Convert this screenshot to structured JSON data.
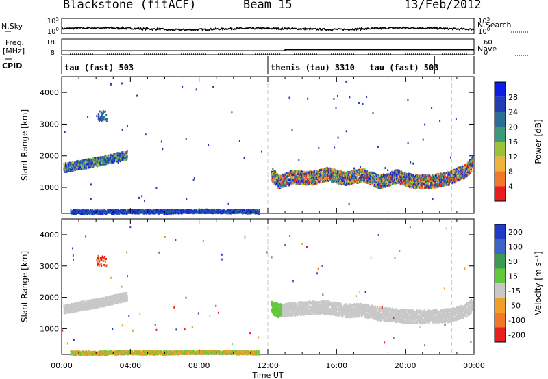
{
  "header": {
    "station": "Blackstone (fitACF)",
    "beam": "Beam 15",
    "date": "13/Feb/2012"
  },
  "strip_labels": {
    "nsky": "N.Sky",
    "nsearch": "N.Search",
    "freq": "Freq.",
    "freq_unit": "[MHz]",
    "nave": "Nave",
    "cpid": "CPID"
  },
  "strip_ticks": {
    "noise_left": [
      "10^5",
      "10^0"
    ],
    "noise_right": [
      "10^5",
      "10^0"
    ],
    "freq_left": [
      "18",
      "8"
    ],
    "nave_right": [
      "60",
      "0"
    ]
  },
  "chart_data": [
    {
      "type": "line",
      "title": "N.Sky / N.Search",
      "x_range_hours": [
        0,
        24
      ],
      "y_scale": "log",
      "series": [
        {
          "name": "N.Sky",
          "level_log10": 1.6
        },
        {
          "name": "N.Search",
          "level_log10": 1.6
        }
      ]
    },
    {
      "type": "line",
      "title": "Freq. / Nave",
      "x_range_hours": [
        0,
        24
      ],
      "ylim_left": [
        8,
        18
      ],
      "ylim_right": [
        0,
        60
      ],
      "series": [
        {
          "name": "Freq. [MHz]",
          "x": [
            0,
            13.0,
            13.0,
            24
          ],
          "y": [
            10.5,
            10.5,
            11.2,
            11.2
          ]
        },
        {
          "name": "Nave",
          "x": [
            0,
            24
          ],
          "y": [
            3,
            3
          ]
        }
      ]
    },
    {
      "type": "table",
      "title": "CPID",
      "segments": [
        {
          "label": "tau (fast) 503",
          "start_hour": 0,
          "end_hour": 12
        },
        {
          "label": "themis (tau) 3310",
          "start_hour": 12,
          "end_hour": 21.7
        },
        {
          "label": "tau (fast) 503",
          "start_hour": 21.7,
          "end_hour": 24
        }
      ]
    },
    {
      "type": "scatter",
      "title": "Power",
      "xlabel": "Time UT",
      "ylabel": "Slant Range [km]",
      "xlim": [
        0,
        24
      ],
      "ylim": [
        180,
        4500
      ],
      "xticks": [
        "00:00",
        "04:00",
        "08:00",
        "12:00",
        "16:00",
        "20:00",
        "00:00"
      ],
      "yticks": [
        1000,
        2000,
        3000,
        4000
      ],
      "colorbar": {
        "label": "Power [dB]",
        "ticks": [
          "4",
          "8",
          "12",
          "16",
          "20",
          "24",
          "28"
        ],
        "colors": [
          "#0a1ee6",
          "#233cb4",
          "#2c6e96",
          "#3c9a78",
          "#9cc23c",
          "#f0b43c",
          "#f07828",
          "#e61e1e"
        ]
      },
      "bands": [
        {
          "name": "echo band 00-04 UT",
          "x": [
            0.1,
            0.8,
            1.6,
            2.4,
            3.2,
            3.8
          ],
          "y": [
            1650,
            1720,
            1800,
            1880,
            1980,
            2050
          ]
        },
        {
          "name": "echo band 12-24 UT",
          "x": [
            12.2,
            12.6,
            13.4,
            14.5,
            15.5,
            16.5,
            17.5,
            18.5,
            19.5,
            20.5,
            21.5,
            22.5,
            23.5,
            23.9
          ],
          "y": [
            1450,
            1200,
            1350,
            1320,
            1450,
            1300,
            1420,
            1200,
            1380,
            1200,
            1220,
            1320,
            1550,
            1800
          ]
        },
        {
          "name": "near range 00-12 UT",
          "x": [
            0.5,
            2,
            4,
            6,
            8,
            10,
            11.5
          ],
          "y": [
            260,
            250,
            270,
            260,
            280,
            270,
            260
          ]
        }
      ],
      "patches": [
        {
          "name": "patch 02 UT",
          "x": [
            2.1,
            2.6
          ],
          "y": [
            3100,
            3450
          ]
        }
      ],
      "grid": true
    },
    {
      "type": "scatter",
      "title": "Velocity",
      "xlabel": "Time UT",
      "ylabel": "Slant Range [km]",
      "xlim": [
        0,
        24
      ],
      "ylim": [
        180,
        4500
      ],
      "xticks": [
        "00:00",
        "04:00",
        "08:00",
        "12:00",
        "16:00",
        "20:00",
        "00:00"
      ],
      "yticks": [
        1000,
        2000,
        3000,
        4000
      ],
      "colorbar": {
        "label": "Velocity [m s⁻¹]",
        "ticks": [
          "200",
          "100",
          "50",
          "15",
          "-15",
          "-50",
          "-100",
          "-200"
        ],
        "colors": [
          "#1e3cc8",
          "#3c64c8",
          "#3c9a50",
          "#64c83c",
          "#c8c8c8",
          "#f0a028",
          "#f07828",
          "#e61e1e"
        ]
      },
      "bands": [
        {
          "name": "echo band 00-04 UT",
          "x": [
            0.1,
            0.8,
            1.6,
            2.4,
            3.2,
            3.8
          ],
          "y": [
            1650,
            1720,
            1800,
            1880,
            1980,
            2050
          ]
        },
        {
          "name": "echo band 12-24 UT",
          "x": [
            12.2,
            12.6,
            13.4,
            14.5,
            15.5,
            16.5,
            17.5,
            18.5,
            19.5,
            20.5,
            21.5,
            22.5,
            23.5,
            23.9
          ],
          "y": [
            1700,
            1600,
            1650,
            1700,
            1700,
            1600,
            1620,
            1500,
            1450,
            1400,
            1420,
            1450,
            1600,
            1800
          ]
        },
        {
          "name": "near range 00-12 UT",
          "x": [
            0.5,
            2,
            4,
            6,
            8,
            10,
            11.5
          ],
          "y": [
            260,
            250,
            270,
            260,
            280,
            270,
            260
          ]
        }
      ],
      "patches": [
        {
          "name": "patch 02 UT",
          "x": [
            2.0,
            2.6
          ],
          "y": [
            3000,
            3350
          ]
        }
      ],
      "grid": true
    }
  ]
}
